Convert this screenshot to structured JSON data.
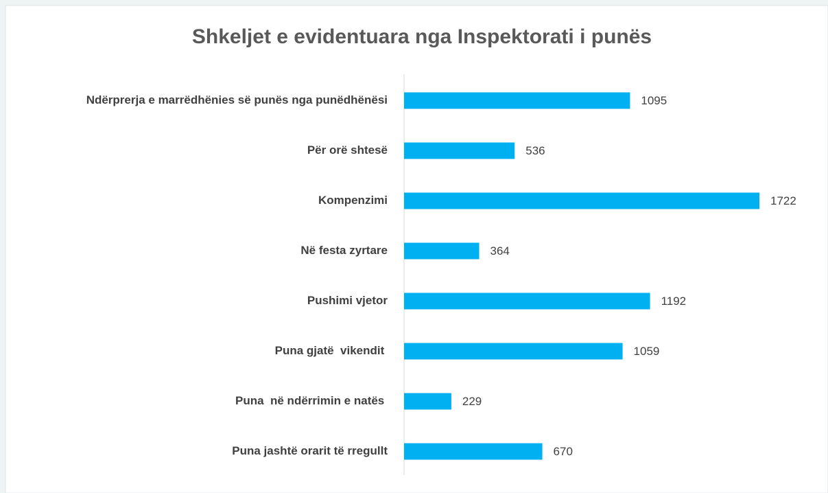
{
  "chart_data": {
    "type": "barh",
    "title": "Shkeljet e evidentuara nga Inspektorati i punës",
    "categories": [
      "Ndërprerja e marrëdhënies së punës nga punëdhënësi",
      "Për orë shtesë",
      "Kompenzimi",
      "Në festa zyrtare",
      "Pushimi vjetor",
      "Puna gjatë  vikendit ",
      "Puna  në ndërrimin e natës ",
      "Puna jashtë orarit të rregullt"
    ],
    "values": [
      1095,
      536,
      1722,
      364,
      1192,
      1059,
      229,
      670
    ],
    "color": "#00b0f0"
  }
}
